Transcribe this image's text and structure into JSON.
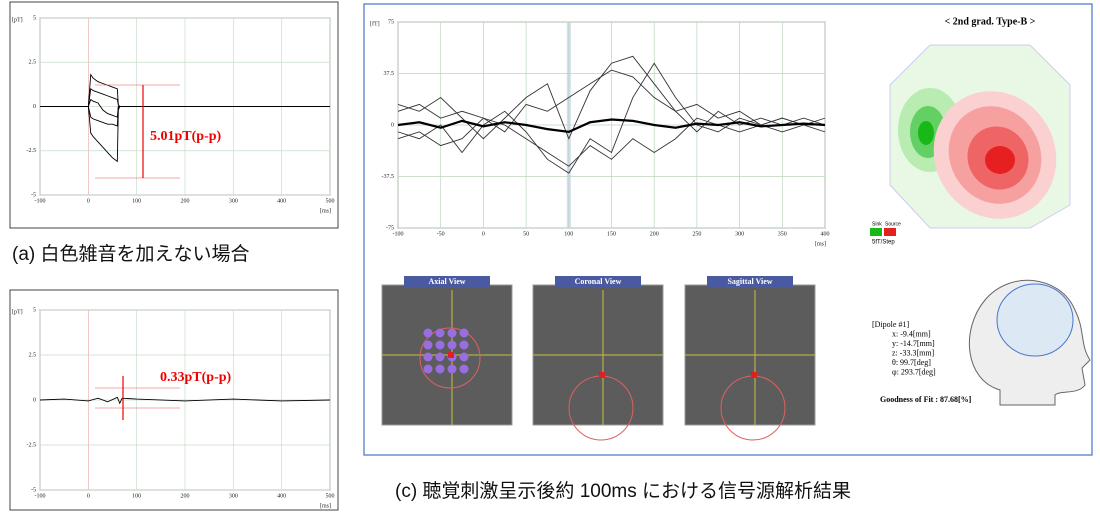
{
  "chart_data": [
    {
      "type": "line",
      "y_unit": "[pT]",
      "x_unit": "[ms]",
      "annotation": "5.01pT(p-p)",
      "xlim": [
        -100,
        500
      ],
      "xticks": [
        -100,
        0,
        100,
        200,
        300,
        400,
        500
      ],
      "ylim": [
        -5,
        5
      ],
      "yticks": [
        5,
        2.5,
        0,
        -2.5,
        -5
      ],
      "grid": true,
      "x": [
        -100,
        -50,
        0,
        5,
        10,
        20,
        30,
        40,
        50,
        60,
        62,
        65,
        100,
        200,
        300,
        400,
        500
      ],
      "series": [
        {
          "color": "#000000",
          "values": [
            0,
            0,
            0,
            1.8,
            1.6,
            1.4,
            1.3,
            1.2,
            1.1,
            1.0,
            0.1,
            0,
            0,
            0,
            0,
            0,
            0
          ]
        },
        {
          "color": "#000000",
          "values": [
            0,
            0,
            0,
            1.0,
            0.9,
            0.8,
            0.7,
            0.6,
            0.5,
            0.4,
            0.1,
            0,
            0,
            0,
            0,
            0,
            0
          ]
        },
        {
          "color": "#000000",
          "values": [
            0,
            0,
            0,
            -0.6,
            -0.7,
            -0.8,
            -0.9,
            -1.0,
            -1.0,
            -1.1,
            -0.1,
            0,
            0,
            0,
            0,
            0,
            0
          ]
        },
        {
          "color": "#000000",
          "values": [
            0,
            0,
            0,
            -1.5,
            -1.7,
            -2.0,
            -2.3,
            -2.6,
            -2.9,
            -3.1,
            -0.2,
            0,
            0,
            0,
            0,
            0,
            0
          ]
        },
        {
          "color": "#000000",
          "values": [
            0,
            0,
            0,
            0.4,
            0.3,
            0.2,
            -0.2,
            -0.4,
            -0.5,
            -0.6,
            0,
            0,
            0,
            0,
            0,
            0,
            0
          ]
        }
      ]
    },
    {
      "type": "line",
      "y_unit": "[pT]",
      "x_unit": "[ms]",
      "annotation": "0.33pT(p-p)",
      "xlim": [
        -100,
        500
      ],
      "xticks": [
        -100,
        0,
        100,
        200,
        300,
        400,
        500
      ],
      "ylim": [
        -5,
        5
      ],
      "yticks": [
        5,
        2.5,
        0,
        -2.5,
        -5
      ],
      "grid": true,
      "x": [
        -100,
        -50,
        0,
        20,
        40,
        60,
        65,
        70,
        100,
        200,
        300,
        400,
        500
      ],
      "series": [
        {
          "color": "#000000",
          "values": [
            0,
            0.05,
            -0.05,
            0.1,
            -0.1,
            0.15,
            -0.18,
            0.1,
            0.05,
            -0.05,
            0.05,
            -0.05,
            0
          ]
        }
      ]
    },
    {
      "type": "line",
      "y_unit": "[fT]",
      "x_unit": "[ms]",
      "highlight_x": 100,
      "xlim": [
        -100,
        400
      ],
      "xticks": [
        -100,
        -50,
        0,
        50,
        100,
        150,
        200,
        250,
        300,
        350,
        400
      ],
      "ylim": [
        -75,
        75
      ],
      "yticks": [
        75,
        37.5,
        0,
        -37.5,
        -75
      ],
      "grid": true,
      "x": [
        -100,
        -75,
        -50,
        -25,
        0,
        25,
        50,
        75,
        100,
        125,
        150,
        175,
        200,
        225,
        250,
        275,
        300,
        325,
        350,
        375,
        400
      ],
      "series": [
        {
          "color": "#333333",
          "values": [
            15,
            10,
            20,
            5,
            -10,
            5,
            20,
            30,
            -10,
            25,
            45,
            50,
            30,
            10,
            15,
            5,
            10,
            0,
            5,
            0,
            5
          ]
        },
        {
          "color": "#333333",
          "values": [
            -5,
            -10,
            0,
            -20,
            0,
            10,
            -5,
            -25,
            -35,
            -10,
            -20,
            20,
            45,
            20,
            0,
            -5,
            5,
            0,
            -5,
            0,
            0
          ]
        },
        {
          "color": "#333333",
          "values": [
            10,
            15,
            5,
            10,
            5,
            -5,
            15,
            10,
            20,
            30,
            40,
            35,
            20,
            10,
            -5,
            10,
            0,
            5,
            0,
            5,
            0
          ]
        },
        {
          "color": "#333333",
          "values": [
            -10,
            -5,
            -15,
            -10,
            5,
            0,
            -10,
            -20,
            -30,
            -15,
            -25,
            -10,
            -20,
            -10,
            5,
            0,
            -5,
            0,
            5,
            0,
            -5
          ]
        },
        {
          "color": "#000000",
          "values": [
            0,
            2,
            -2,
            3,
            -1,
            2,
            0,
            -3,
            -5,
            2,
            4,
            3,
            0,
            -2,
            1,
            0,
            2,
            -1,
            0,
            1,
            0
          ]
        }
      ]
    }
  ],
  "captions": [
    "(a) 白色雑音を加えない場合",
    "(c) 聴覚刺激呈示後約 100ms における信号源解析結果"
  ],
  "map": {
    "title": "< 2nd grad. Type-B >",
    "sink": "Sink",
    "source": "Source",
    "step": "5fT/Step"
  },
  "views": [
    "Axial View",
    "Coronal View",
    "Sagittal View"
  ],
  "dipole": {
    "lines": [
      "[Dipole #1]",
      "x: -9.4[mm]",
      "y: -14.7[mm]",
      "z: -33.3[mm]",
      "θ: 99.7[deg]",
      "φ: 293.7[deg]"
    ],
    "fit": "Goodness of Fit : 87.68[%]"
  }
}
